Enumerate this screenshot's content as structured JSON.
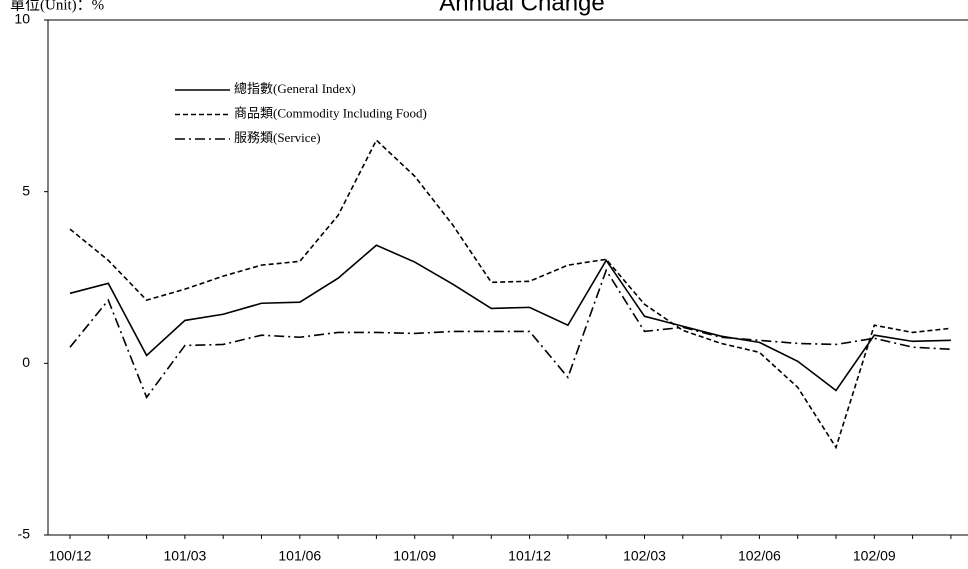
{
  "chart_data": {
    "type": "line",
    "title": "Annual Change",
    "y_axis_label": "單位(Unit)：%",
    "categories": [
      "100/12",
      null,
      null,
      "101/03",
      null,
      null,
      "101/06",
      null,
      null,
      "101/09",
      null,
      null,
      "101/12",
      null,
      null,
      "102/03",
      null,
      null,
      "102/06",
      null,
      null,
      "102/09",
      null,
      null
    ],
    "series": [
      {
        "name": "總指數(General Index)",
        "color": "#000000",
        "style": "solid",
        "values": [
          2.04,
          2.33,
          0.23,
          1.25,
          1.43,
          1.75,
          1.78,
          2.48,
          3.44,
          2.95,
          2.3,
          1.6,
          1.63,
          1.11,
          3.0,
          1.37,
          1.08,
          0.79,
          0.61,
          0.06,
          -0.79,
          0.82,
          0.64,
          0.67
        ]
      },
      {
        "name": "商品類(Commodity Including Food)",
        "color": "#000000",
        "style": "dashed",
        "values": [
          3.91,
          3.0,
          1.84,
          2.16,
          2.54,
          2.86,
          2.97,
          4.31,
          6.5,
          5.45,
          4.02,
          2.36,
          2.39,
          2.86,
          3.03,
          1.72,
          0.96,
          0.58,
          0.32,
          -0.7,
          -2.45,
          1.11,
          0.9,
          1.02
        ]
      },
      {
        "name": "服務類(Service)",
        "color": "#000000",
        "style": "dashdot",
        "values": [
          0.47,
          1.84,
          -0.99,
          0.52,
          0.55,
          0.82,
          0.76,
          0.9,
          0.9,
          0.87,
          0.93,
          0.93,
          0.93,
          -0.41,
          2.71,
          0.93,
          1.05,
          0.76,
          0.67,
          0.58,
          0.55,
          0.73,
          0.47,
          0.41
        ]
      }
    ],
    "ylim": [
      -5,
      10
    ],
    "yticks": [
      -5,
      0,
      5,
      10
    ],
    "grid": false,
    "legend": "upper left"
  }
}
